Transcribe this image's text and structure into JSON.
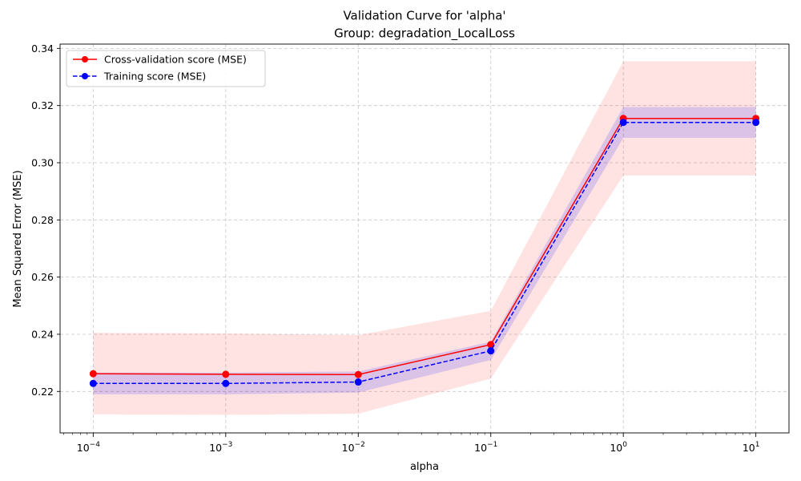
{
  "chart_data": {
    "type": "line",
    "title": "Validation Curve for 'alpha'",
    "subtitle": "Group: degradation_LocalLoss",
    "xlabel": "alpha",
    "ylabel": "Mean Squared Error (MSE)",
    "xscale": "log",
    "x": [
      0.0001,
      0.001,
      0.01,
      0.1,
      1,
      10
    ],
    "x_tick_labels": [
      {
        "base": "10",
        "exp": "−4"
      },
      {
        "base": "10",
        "exp": "−3"
      },
      {
        "base": "10",
        "exp": "−2"
      },
      {
        "base": "10",
        "exp": "−1"
      },
      {
        "base": "10",
        "exp": "0"
      },
      {
        "base": "10",
        "exp": "1"
      }
    ],
    "y_ticks": [
      "0.22",
      "0.24",
      "0.26",
      "0.28",
      "0.30",
      "0.32",
      "0.34"
    ],
    "ylim": [
      0.2055,
      0.3415
    ],
    "xlim_exponent": [
      -4.25,
      1.25
    ],
    "grid": true,
    "legend_position": "top-left",
    "series": [
      {
        "name": "Cross-validation score (MSE)",
        "color": "#ff0000",
        "line_style": "solid",
        "marker": "circle",
        "values": [
          0.2262,
          0.226,
          0.2259,
          0.2364,
          0.3155,
          0.3155
        ],
        "band_lower": [
          0.212,
          0.2118,
          0.2122,
          0.2245,
          0.2955,
          0.2955
        ],
        "band_upper": [
          0.2405,
          0.2403,
          0.2397,
          0.2482,
          0.3355,
          0.3355
        ],
        "band_color": "#ff0000"
      },
      {
        "name": "Training score (MSE)",
        "color": "#0000ff",
        "line_style": "dashed",
        "marker": "circle",
        "values": [
          0.2228,
          0.2228,
          0.2233,
          0.2342,
          0.3141,
          0.3141
        ],
        "band_lower": [
          0.219,
          0.219,
          0.2196,
          0.231,
          0.3087,
          0.3087
        ],
        "band_upper": [
          0.2266,
          0.2266,
          0.227,
          0.2374,
          0.3195,
          0.3195
        ],
        "band_color": "#0000ff"
      }
    ]
  }
}
